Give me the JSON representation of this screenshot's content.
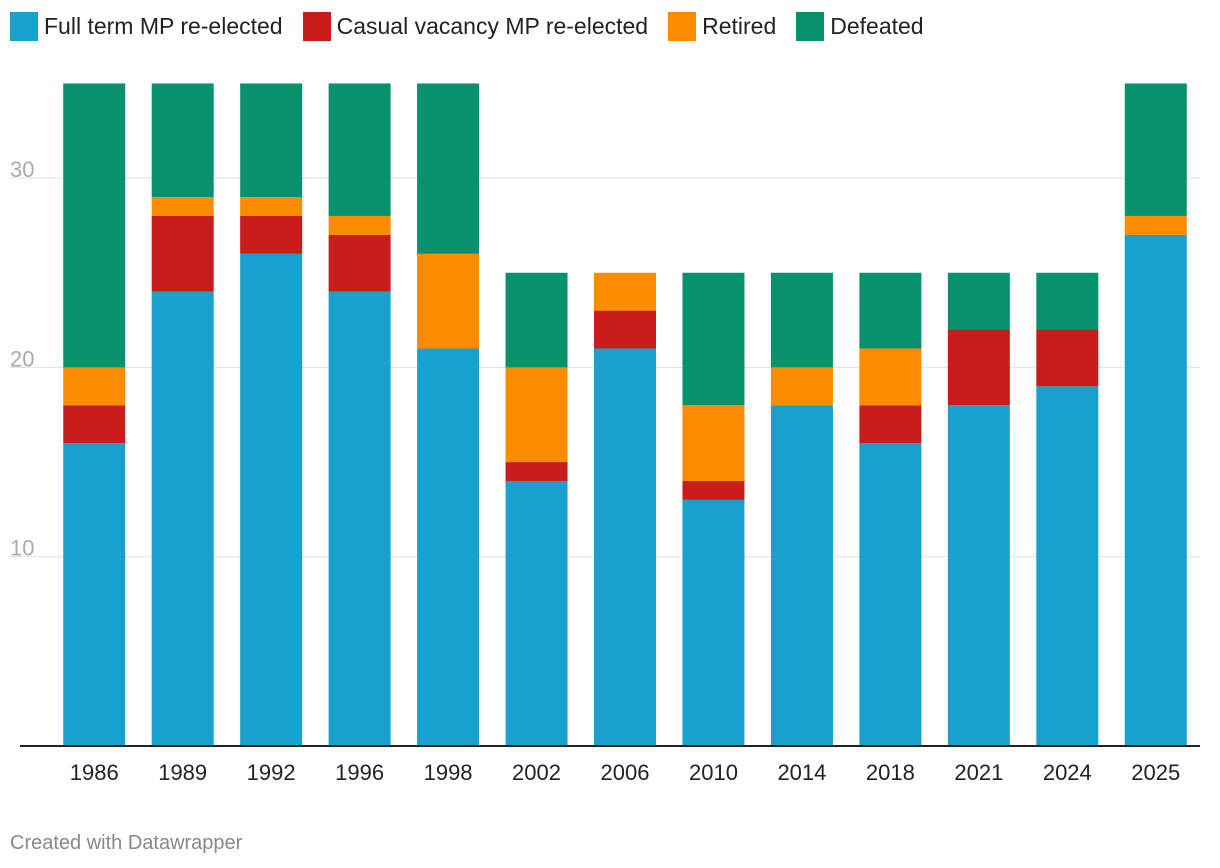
{
  "chart_data": {
    "type": "bar",
    "stacked": true,
    "categories": [
      "1986",
      "1989",
      "1992",
      "1996",
      "1998",
      "2002",
      "2006",
      "2010",
      "2014",
      "2018",
      "2021",
      "2024",
      "2025"
    ],
    "series": [
      {
        "name": "Full term MP re-elected",
        "color": "#18a1cd",
        "values": [
          16,
          24,
          26,
          24,
          21,
          14,
          21,
          13,
          18,
          16,
          18,
          19,
          27
        ]
      },
      {
        "name": "Casual vacancy MP re-elected",
        "color": "#c71e1d",
        "values": [
          2,
          4,
          2,
          3,
          0,
          1,
          2,
          1,
          0,
          2,
          4,
          3,
          0
        ]
      },
      {
        "name": "Retired",
        "color": "#fa8c00",
        "values": [
          2,
          1,
          1,
          1,
          5,
          5,
          2,
          4,
          2,
          3,
          0,
          0,
          1
        ]
      },
      {
        "name": "Defeated",
        "color": "#09916d",
        "values": [
          15,
          6,
          6,
          7,
          9,
          5,
          0,
          7,
          5,
          4,
          3,
          3,
          7
        ]
      }
    ],
    "ylim": [
      0,
      35
    ],
    "yticks": [
      10,
      20,
      30
    ],
    "title": "",
    "xlabel": "",
    "ylabel": "",
    "legend_position": "top-left",
    "grid": true
  },
  "footer": {
    "credit": "Created with Datawrapper"
  }
}
